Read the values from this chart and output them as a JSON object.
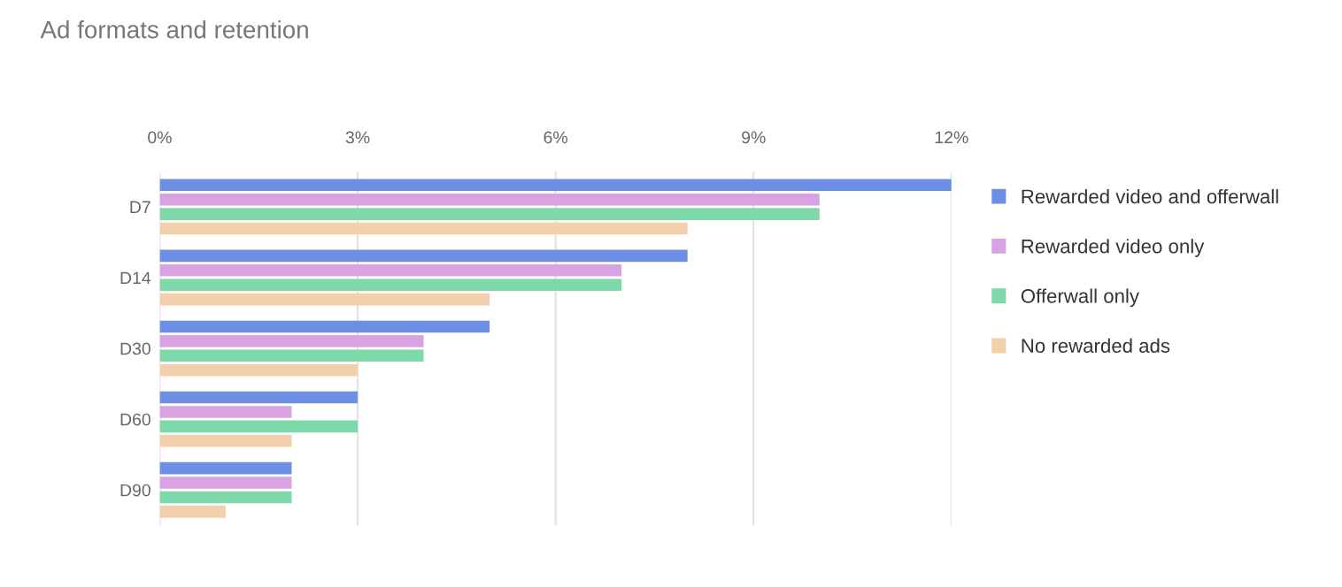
{
  "chart_data": {
    "type": "bar",
    "orientation": "horizontal",
    "title": "Ad formats and retention",
    "categories": [
      "D7",
      "D14",
      "D30",
      "D60",
      "D90"
    ],
    "series": [
      {
        "name": "Rewarded video and offerwall",
        "color": "#6d8fe3",
        "values": [
          12,
          8,
          5,
          3,
          2
        ]
      },
      {
        "name": "Rewarded video only",
        "color": "#d9a2e3",
        "values": [
          10,
          7,
          4,
          2,
          2
        ]
      },
      {
        "name": "Offerwall only",
        "color": "#7fd8a9",
        "values": [
          10,
          7,
          4,
          3,
          2
        ]
      },
      {
        "name": "No rewarded ads",
        "color": "#f3d0ac",
        "values": [
          8,
          5,
          3,
          2,
          1
        ]
      }
    ],
    "xlim": [
      0,
      12
    ],
    "xticks": [
      {
        "value": 0,
        "label": "0%"
      },
      {
        "value": 3,
        "label": "3%"
      },
      {
        "value": 6,
        "label": "6%"
      },
      {
        "value": 9,
        "label": "9%"
      },
      {
        "value": 12,
        "label": "12%"
      }
    ],
    "grid": "x",
    "legend": "right"
  }
}
